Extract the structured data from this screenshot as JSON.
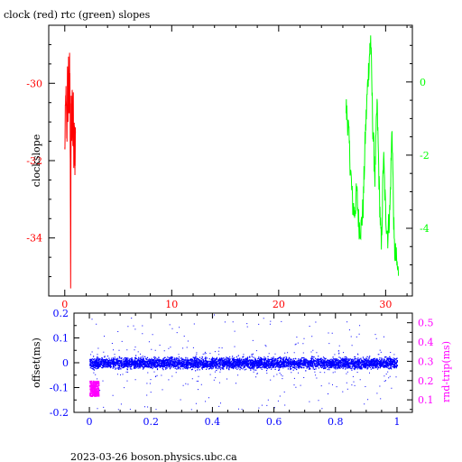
{
  "title": "clock (red) rtc (green) slopes",
  "footer": "2023-03-26  boson.physics.ubc.ca",
  "colors": {
    "clock": "#ff0000",
    "rtc": "#00ff00",
    "offset": "#0000ff",
    "roundtrip": "#ff00ff",
    "axis": "#000000"
  },
  "chart_data": [
    {
      "type": "line",
      "title": "clock (red) rtc (green) slopes",
      "ylabel": "clockslope",
      "xlim": [
        -1.5,
        32.5
      ],
      "ylim_left": [
        -35.5,
        -28.5
      ],
      "ylim_right": [
        -5.85,
        1.55
      ],
      "x_ticks": [
        "0",
        "10",
        "20",
        "30"
      ],
      "y_left_ticks": [
        "-30",
        "-32",
        "-34"
      ],
      "y_right_ticks": [
        "0",
        "-2",
        "-4"
      ],
      "series": [
        {
          "axis": "left",
          "color": "red",
          "x_range": [
            0.0,
            1.0
          ],
          "y_range": [
            -35.2,
            -29.5
          ],
          "description_points": [
            [
              0.0,
              -31.8
            ],
            [
              0.1,
              -30.2
            ],
            [
              0.2,
              -31.5
            ],
            [
              0.25,
              -29.9
            ],
            [
              0.3,
              -30.8
            ],
            [
              0.35,
              -29.6
            ],
            [
              0.4,
              -31.0
            ],
            [
              0.45,
              -29.5
            ],
            [
              0.5,
              -30.6
            ],
            [
              0.55,
              -35.2
            ],
            [
              0.6,
              -30.1
            ],
            [
              0.65,
              -31.4
            ],
            [
              0.7,
              -30.3
            ],
            [
              0.75,
              -31.6
            ],
            [
              0.8,
              -30.6
            ],
            [
              0.85,
              -32.4
            ],
            [
              0.9,
              -31.0
            ],
            [
              0.95,
              -32.0
            ],
            [
              1.0,
              -31.3
            ]
          ]
        },
        {
          "axis": "right",
          "color": "green",
          "x_range": [
            26.3,
            31.2
          ],
          "y_range": [
            -5.3,
            1.2
          ],
          "description_points": [
            [
              26.3,
              -0.7
            ],
            [
              26.5,
              -1.2
            ],
            [
              26.7,
              -2.3
            ],
            [
              26.9,
              -3.3
            ],
            [
              27.1,
              -3.6
            ],
            [
              27.3,
              -3.0
            ],
            [
              27.5,
              -3.9
            ],
            [
              27.7,
              -4.0
            ],
            [
              27.9,
              -3.4
            ],
            [
              28.1,
              -1.5
            ],
            [
              28.3,
              -0.2
            ],
            [
              28.5,
              0.8
            ],
            [
              28.6,
              1.2
            ],
            [
              28.8,
              -1.2
            ],
            [
              29.0,
              -2.6
            ],
            [
              29.2,
              -0.6
            ],
            [
              29.4,
              -2.9
            ],
            [
              29.6,
              -4.6
            ],
            [
              29.8,
              -2.0
            ],
            [
              30.0,
              -3.6
            ],
            [
              30.2,
              -4.2
            ],
            [
              30.4,
              -3.5
            ],
            [
              30.6,
              -1.2
            ],
            [
              30.8,
              -4.5
            ],
            [
              31.0,
              -4.9
            ],
            [
              31.2,
              -5.3
            ]
          ]
        }
      ]
    },
    {
      "type": "scatter",
      "xlim": [
        -0.05,
        1.05
      ],
      "ylim_left": [
        -0.2,
        0.2
      ],
      "ylim_right": [
        0.035,
        0.55
      ],
      "ylabel_left": "offset(ms)",
      "ylabel_right": "rnd-trip(ms)",
      "x_ticks": [
        "0",
        "0.2",
        "0.4",
        "0.6",
        "0.8",
        "1"
      ],
      "y_left_ticks": [
        "0.2",
        "0.1",
        "0",
        "-0.1",
        "-0.2"
      ],
      "y_right_ticks": [
        "0.5",
        "0.4",
        "0.3",
        "0.2",
        "0.1"
      ],
      "series": [
        {
          "color": "blue",
          "axis": "left",
          "x_range": [
            0.0,
            1.0
          ],
          "core_y_range": [
            -0.03,
            0.03
          ],
          "outlier_y_range": [
            -0.2,
            0.2
          ]
        },
        {
          "color": "magenta",
          "axis": "right",
          "x_range": [
            0.0,
            0.03
          ],
          "y_range": [
            0.12,
            0.2
          ]
        }
      ]
    }
  ]
}
